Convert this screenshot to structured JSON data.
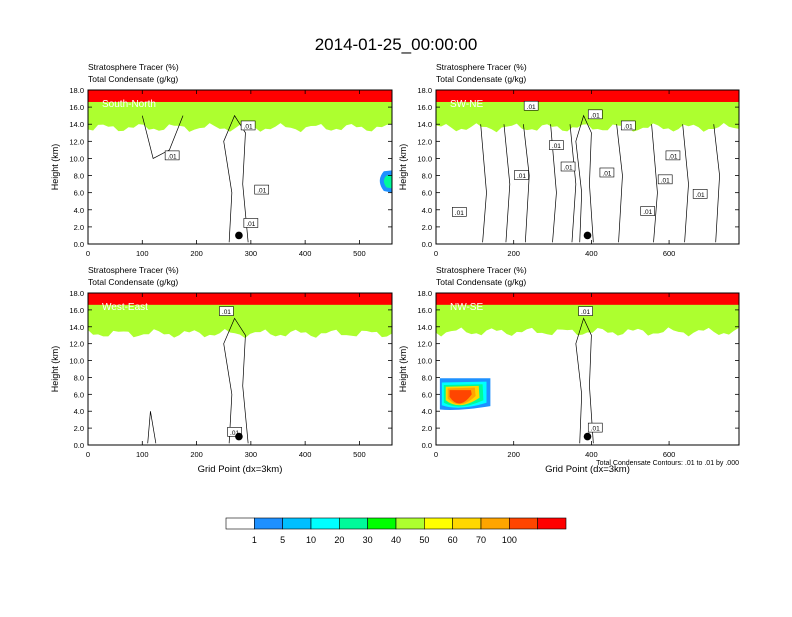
{
  "figure": {
    "title": "2014-01-25_00:00:00",
    "contour_note": "Total Condensate Contours: .01 to .01 by .000"
  },
  "chart_data": [
    {
      "type": "heatmap",
      "panel_label": "South-North",
      "subtitle_1": "Stratosphere Tracer   (%)",
      "subtitle_2": "Total Condensate   (g/kg)",
      "ylabel": "Height (km)",
      "xlabel": "",
      "xlim": [
        0,
        560
      ],
      "ylim": [
        0,
        18
      ],
      "xticks": [
        0,
        100,
        200,
        300,
        400,
        500
      ],
      "yticks": [
        "0.0",
        "2.0",
        "4.0",
        "6.0",
        "8.0",
        "10.0",
        "12.0",
        "14.0",
        "16.0",
        "18.0"
      ],
      "marker": {
        "x": 278,
        "y": 1.0
      },
      "contour_labels": [
        {
          "x": 295,
          "y": 13.8,
          "text": ".01"
        },
        {
          "x": 155,
          "y": 10.3,
          "text": ".01"
        },
        {
          "x": 320,
          "y": 6.3,
          "text": ".01"
        },
        {
          "x": 300,
          "y": 2.4,
          "text": ".01"
        }
      ]
    },
    {
      "type": "heatmap",
      "panel_label": "SW-NE",
      "subtitle_1": "Stratosphere Tracer   (%)",
      "subtitle_2": "Total Condensate   (g/kg)",
      "ylabel": "Height (km)",
      "xlabel": "",
      "xlim": [
        0,
        780
      ],
      "ylim": [
        0,
        18
      ],
      "xticks": [
        0,
        200,
        400,
        600
      ],
      "yticks": [
        "0.0",
        "2.0",
        "4.0",
        "6.0",
        "8.0",
        "10.0",
        "12.0",
        "14.0",
        "16.0",
        "18.0"
      ],
      "marker": {
        "x": 390,
        "y": 1.0
      },
      "contour_labels": [
        {
          "x": 245,
          "y": 16.1,
          "text": ".01"
        },
        {
          "x": 410,
          "y": 15.1,
          "text": ".01"
        },
        {
          "x": 495,
          "y": 13.8,
          "text": ".01"
        },
        {
          "x": 310,
          "y": 11.5,
          "text": ".01"
        },
        {
          "x": 340,
          "y": 9.0,
          "text": ".01"
        },
        {
          "x": 440,
          "y": 8.3,
          "text": ".01"
        },
        {
          "x": 220,
          "y": 8.0,
          "text": ".01"
        },
        {
          "x": 610,
          "y": 10.3,
          "text": ".01"
        },
        {
          "x": 590,
          "y": 7.5,
          "text": ".01"
        },
        {
          "x": 680,
          "y": 5.8,
          "text": ".01"
        },
        {
          "x": 60,
          "y": 3.7,
          "text": ".01"
        },
        {
          "x": 545,
          "y": 3.8,
          "text": ".01"
        }
      ]
    },
    {
      "type": "heatmap",
      "panel_label": "West-East",
      "subtitle_1": "Stratosphere Tracer   (%)",
      "subtitle_2": "Total Condensate   (g/kg)",
      "ylabel": "Height (km)",
      "xlabel": "Grid Point (dx=3km)",
      "xlim": [
        0,
        560
      ],
      "ylim": [
        0,
        18
      ],
      "xticks": [
        0,
        100,
        200,
        300,
        400,
        500
      ],
      "yticks": [
        "0.0",
        "2.0",
        "4.0",
        "6.0",
        "8.0",
        "10.0",
        "12.0",
        "14.0",
        "16.0",
        "18.0"
      ],
      "marker": {
        "x": 278,
        "y": 1.0
      },
      "contour_labels": [
        {
          "x": 255,
          "y": 15.8,
          "text": ".01"
        },
        {
          "x": 270,
          "y": 1.5,
          "text": ".01"
        }
      ]
    },
    {
      "type": "heatmap",
      "panel_label": "NW-SE",
      "subtitle_1": "Stratosphere Tracer   (%)",
      "subtitle_2": "Total Condensate   (g/kg)",
      "ylabel": "Height (km)",
      "xlabel": "Grid Point (dx=3km)",
      "xlim": [
        0,
        780
      ],
      "ylim": [
        0,
        18
      ],
      "xticks": [
        0,
        200,
        400,
        600
      ],
      "yticks": [
        "0.0",
        "2.0",
        "4.0",
        "6.0",
        "8.0",
        "10.0",
        "12.0",
        "14.0",
        "16.0",
        "18.0"
      ],
      "marker": {
        "x": 390,
        "y": 1.0
      },
      "contour_labels": [
        {
          "x": 385,
          "y": 15.8,
          "text": ".01"
        },
        {
          "x": 410,
          "y": 2.0,
          "text": ".01"
        }
      ]
    }
  ],
  "colorbar": {
    "ticks": [
      "1",
      "5",
      "10",
      "20",
      "30",
      "40",
      "50",
      "60",
      "70",
      "100"
    ],
    "colors": [
      "#ffffff",
      "#1e90ff",
      "#00bfff",
      "#00ffff",
      "#00fa9a",
      "#00ff00",
      "#adff2f",
      "#ffff00",
      "#ffd700",
      "#ffa500",
      "#ff4500",
      "#ff0000"
    ]
  }
}
